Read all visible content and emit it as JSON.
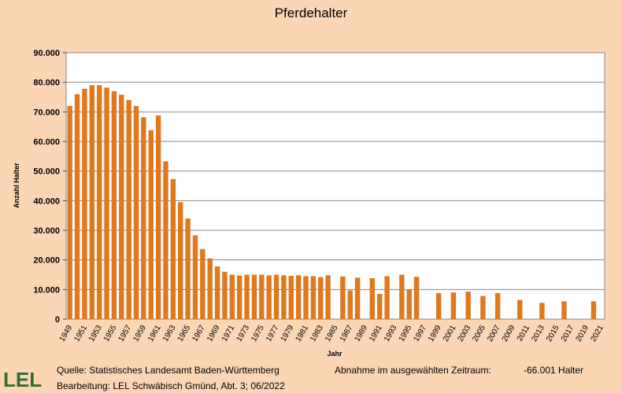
{
  "chart_data": {
    "type": "bar",
    "title": "Pferdehalter",
    "x_label": "Jahr",
    "y_label": "Anzahl Halter",
    "categories": [
      "1949",
      null,
      "1951",
      null,
      "1953",
      null,
      "1955",
      null,
      "1957",
      null,
      "1959",
      null,
      "1961",
      null,
      "1963",
      null,
      "1965",
      null,
      "1967",
      null,
      "1969",
      null,
      "1971",
      null,
      "1973",
      null,
      "1975",
      null,
      "1977",
      null,
      "1979",
      null,
      "1981",
      null,
      "1983",
      null,
      "1985",
      null,
      "1987",
      null,
      "1989",
      null,
      "1991",
      null,
      "1993",
      null,
      "1995",
      null,
      "1997",
      null,
      "1999",
      null,
      "2001",
      null,
      "2003",
      null,
      "2005",
      null,
      "2007",
      null,
      "2009",
      null,
      "2011",
      null,
      "2013",
      null,
      "2015",
      null,
      "2017",
      null,
      "2019",
      null,
      "2021"
    ],
    "values": [
      72000,
      76000,
      77800,
      79000,
      79000,
      78200,
      77000,
      75800,
      74000,
      72000,
      68200,
      63800,
      68800,
      53300,
      47300,
      39500,
      34000,
      28300,
      23700,
      20500,
      17800,
      16000,
      15000,
      14700,
      15000,
      15000,
      15000,
      14800,
      15000,
      14800,
      14600,
      14800,
      14500,
      14500,
      14200,
      14800,
      null,
      14400,
      9700,
      14000,
      null,
      13800,
      8500,
      14500,
      null,
      15000,
      10000,
      14300,
      null,
      null,
      8800,
      null,
      9000,
      null,
      9300,
      null,
      7800,
      null,
      8800,
      null,
      null,
      6500,
      null,
      null,
      5500,
      null,
      null,
      6000,
      null,
      null,
      null,
      6000,
      null
    ],
    "color": "#e0781e",
    "ylim": [
      0,
      90000
    ],
    "yticks": [
      {
        "value": 0,
        "label": "0"
      },
      {
        "value": 10000,
        "label": "10.000"
      },
      {
        "value": 20000,
        "label": "20.000"
      },
      {
        "value": 30000,
        "label": "30.000"
      },
      {
        "value": 40000,
        "label": "40.000"
      },
      {
        "value": 50000,
        "label": "50.000"
      },
      {
        "value": 60000,
        "label": "60.000"
      },
      {
        "value": 70000,
        "label": "70.000"
      },
      {
        "value": 80000,
        "label": "80.000"
      },
      {
        "value": 90000,
        "label": "90.000"
      }
    ],
    "grid": true
  },
  "footer": {
    "logo": "LEL",
    "source": "Quelle: Statistisches Landesamt Baden-Württemberg",
    "editor": "Bearbeitung: LEL Schwäbisch Gmünd, Abt. 3; 06/2022",
    "change_label": "Abnahme im ausgewählten Zeitraum:",
    "change_value": "-66.001 Halter"
  }
}
